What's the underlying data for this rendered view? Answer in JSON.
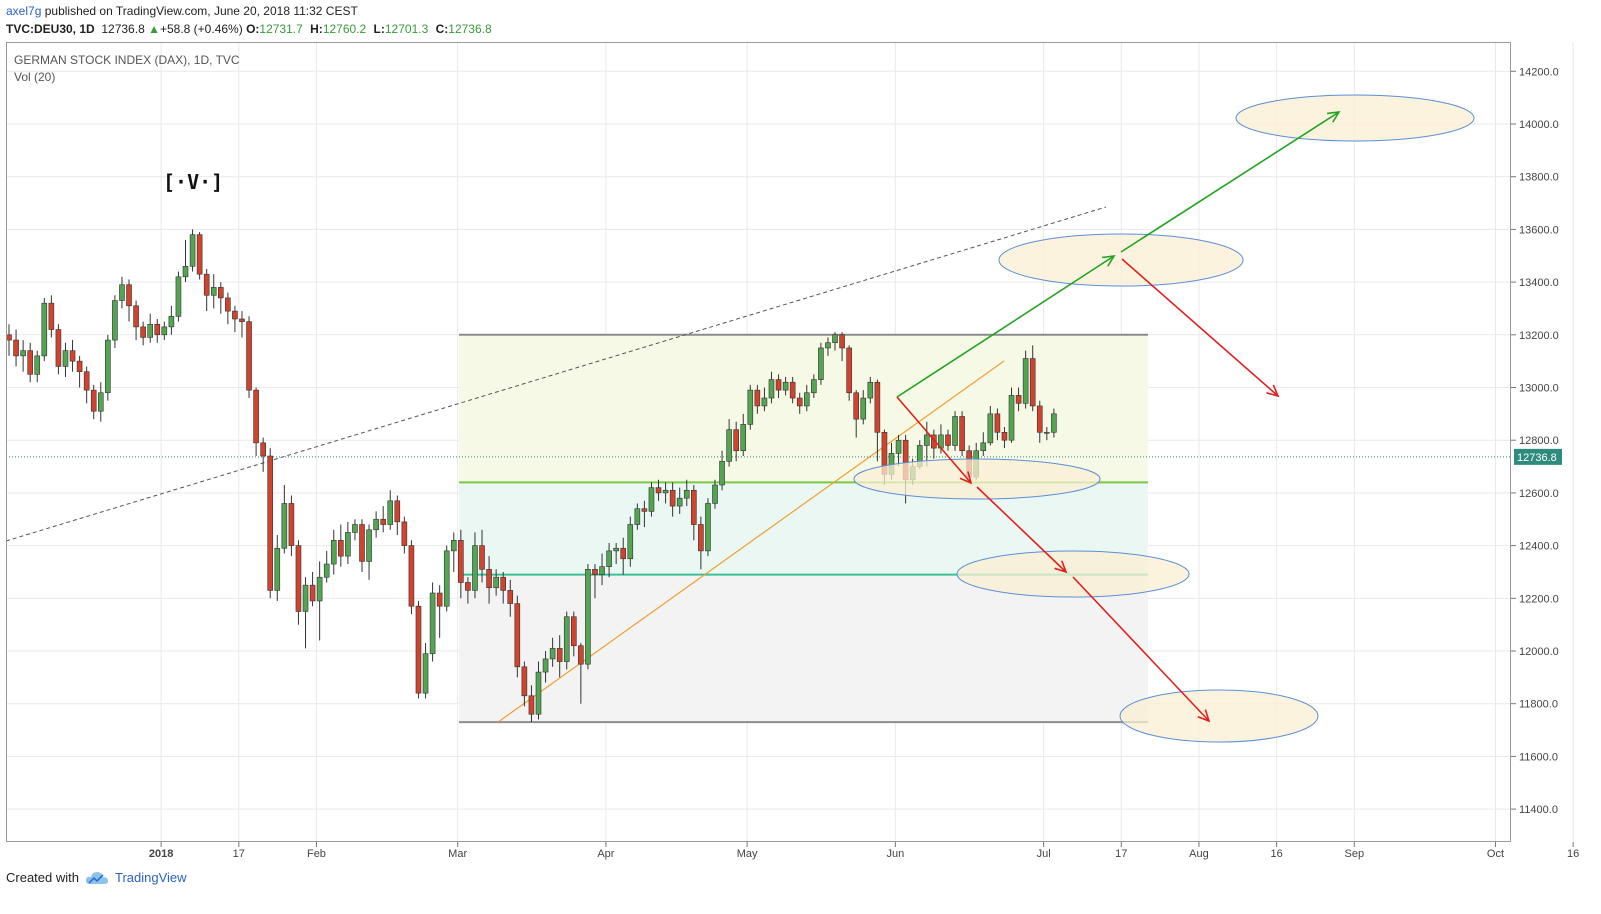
{
  "header": {
    "author": "axel7g",
    "published": "published on TradingView.com, June 20, 2018 11:32 CEST",
    "symbol": "TVC:DEU30, 1D",
    "price": "12736.8",
    "change_arrow": "▲",
    "change": "+58.8 (+0.46%)",
    "o_label": "O:",
    "o_value": "12731.7",
    "h_label": "H:",
    "h_value": "12760.2",
    "l_label": "L:",
    "l_value": "12701.3",
    "c_label": "C:",
    "c_value": "12736.8"
  },
  "legend": {
    "title": "GERMAN STOCK INDEX (DAX), 1D, TVC",
    "volume": "Vol (20)"
  },
  "logo_text": "[·V·]",
  "footer": {
    "created": "Created with",
    "brand": "TradingView",
    "brand_icon": "tradingview-cloud-icon"
  },
  "colors": {
    "up": "#53a553",
    "down": "#d0432f",
    "grid": "#e9e9e9",
    "price_badge": "#2f8b7e",
    "green_arrow": "#21a321",
    "red_arrow": "#e02020",
    "ellipse_fill": "#fbefd3",
    "ellipse_stroke": "#5b8fd6",
    "level_1": "#7ac943",
    "level_2": "#3cc198",
    "trend": "#f0a030"
  },
  "chart_data": {
    "type": "candlestick",
    "y_axis_ticks": [
      "11400.0",
      "11600.0",
      "11800.0",
      "12000.0",
      "12200.0",
      "12400.0",
      "12600.0",
      "12800.0",
      "13000.0",
      "13200.0",
      "13400.0",
      "13600.0",
      "13800.0",
      "14000.0",
      "14200.0"
    ],
    "y_range": [
      11260,
      14300
    ],
    "last_price_label": "12736.8",
    "x_axis_ticks": [
      {
        "label": "2018",
        "bold": true,
        "index": 19
      },
      {
        "label": "17",
        "index": 30
      },
      {
        "label": "Feb",
        "index": 41
      },
      {
        "label": "Mar",
        "index": 61
      },
      {
        "label": "Apr",
        "index": 82
      },
      {
        "label": "May",
        "index": 102
      },
      {
        "label": "Jun",
        "index": 123
      },
      {
        "label": "Jul",
        "index": 144
      },
      {
        "label": "17",
        "index": 155
      },
      {
        "label": "Aug",
        "index": 166
      },
      {
        "label": "16",
        "index": 177
      },
      {
        "label": "Sep",
        "index": 188
      },
      {
        "label": "Oct",
        "index": 208
      },
      {
        "label": "16",
        "index": 219
      }
    ],
    "candles": [
      [
        13200,
        13180,
        13240,
        13120
      ],
      [
        13180,
        13120,
        13220,
        13080
      ],
      [
        13120,
        13140,
        13180,
        13060
      ],
      [
        13140,
        13050,
        13170,
        13020
      ],
      [
        13050,
        13120,
        13140,
        13020
      ],
      [
        13120,
        13320,
        13340,
        13100
      ],
      [
        13320,
        13220,
        13350,
        13190
      ],
      [
        13220,
        13080,
        13240,
        13050
      ],
      [
        13080,
        13140,
        13170,
        13040
      ],
      [
        13140,
        13100,
        13180,
        13060
      ],
      [
        13100,
        13060,
        13120,
        13000
      ],
      [
        13060,
        12990,
        13080,
        12940
      ],
      [
        12990,
        12910,
        13010,
        12880
      ],
      [
        12910,
        12980,
        13020,
        12870
      ],
      [
        12980,
        13180,
        13200,
        12950
      ],
      [
        13180,
        13330,
        13350,
        13150
      ],
      [
        13330,
        13390,
        13420,
        13300
      ],
      [
        13390,
        13310,
        13410,
        13250
      ],
      [
        13310,
        13230,
        13330,
        13180
      ],
      [
        13230,
        13190,
        13250,
        13160
      ],
      [
        13190,
        13240,
        13280,
        13170
      ],
      [
        13240,
        13200,
        13260,
        13170
      ],
      [
        13200,
        13230,
        13250,
        13180
      ],
      [
        13230,
        13270,
        13310,
        13200
      ],
      [
        13270,
        13420,
        13440,
        13250
      ],
      [
        13420,
        13460,
        13560,
        13400
      ],
      [
        13460,
        13580,
        13600,
        13440
      ],
      [
        13580,
        13430,
        13590,
        13410
      ],
      [
        13430,
        13350,
        13450,
        13290
      ],
      [
        13350,
        13380,
        13430,
        13300
      ],
      [
        13380,
        13340,
        13400,
        13280
      ],
      [
        13340,
        13290,
        13360,
        13240
      ],
      [
        13290,
        13260,
        13310,
        13210
      ],
      [
        13260,
        13250,
        13290,
        13190
      ],
      [
        13250,
        12990,
        13270,
        12960
      ],
      [
        12990,
        12790,
        13000,
        12740
      ],
      [
        12790,
        12740,
        12810,
        12680
      ],
      [
        12740,
        12230,
        12770,
        12200
      ],
      [
        12230,
        12390,
        12440,
        12190
      ],
      [
        12390,
        12560,
        12630,
        12370
      ],
      [
        12560,
        12400,
        12590,
        12360
      ],
      [
        12400,
        12150,
        12420,
        12100
      ],
      [
        12150,
        12250,
        12280,
        12010
      ],
      [
        12250,
        12190,
        12300,
        12170
      ],
      [
        12190,
        12280,
        12340,
        12040
      ],
      [
        12280,
        12330,
        12380,
        12260
      ],
      [
        12330,
        12420,
        12460,
        12290
      ],
      [
        12420,
        12360,
        12480,
        12320
      ],
      [
        12360,
        12450,
        12490,
        12330
      ],
      [
        12450,
        12480,
        12500,
        12420
      ],
      [
        12480,
        12340,
        12500,
        12300
      ],
      [
        12340,
        12460,
        12480,
        12270
      ],
      [
        12460,
        12500,
        12530,
        12430
      ],
      [
        12500,
        12480,
        12550,
        12450
      ],
      [
        12480,
        12570,
        12610,
        12460
      ],
      [
        12570,
        12490,
        12590,
        12440
      ],
      [
        12490,
        12400,
        12510,
        12370
      ],
      [
        12400,
        12170,
        12420,
        12140
      ],
      [
        12170,
        11840,
        12190,
        11820
      ],
      [
        11840,
        11990,
        12030,
        11820
      ],
      [
        11990,
        12220,
        12260,
        11960
      ],
      [
        12220,
        12170,
        12250,
        12050
      ],
      [
        12170,
        12380,
        12400,
        12150
      ],
      [
        12380,
        12420,
        12450,
        12300
      ],
      [
        12420,
        12260,
        12460,
        12200
      ],
      [
        12260,
        12230,
        12280,
        12180
      ],
      [
        12230,
        12400,
        12450,
        12200
      ],
      [
        12400,
        12310,
        12460,
        12260
      ],
      [
        12310,
        12240,
        12360,
        12180
      ],
      [
        12240,
        12280,
        12310,
        12210
      ],
      [
        12280,
        12230,
        12300,
        12180
      ],
      [
        12230,
        12180,
        12270,
        12130
      ],
      [
        12180,
        11940,
        12210,
        11900
      ],
      [
        11940,
        11830,
        11960,
        11790
      ],
      [
        11830,
        11760,
        11870,
        11730
      ],
      [
        11760,
        11920,
        11960,
        11740
      ],
      [
        11920,
        11970,
        12000,
        11880
      ],
      [
        11970,
        12010,
        12050,
        11940
      ],
      [
        12010,
        11960,
        12060,
        11900
      ],
      [
        11960,
        12130,
        12150,
        11930
      ],
      [
        12130,
        12020,
        12150,
        11980
      ],
      [
        12020,
        11950,
        12030,
        11800
      ],
      [
        11950,
        12310,
        12330,
        11930
      ],
      [
        12310,
        12290,
        12330,
        12200
      ],
      [
        12290,
        12320,
        12370,
        12250
      ],
      [
        12320,
        12380,
        12410,
        12280
      ],
      [
        12380,
        12390,
        12410,
        12330
      ],
      [
        12390,
        12350,
        12430,
        12290
      ],
      [
        12350,
        12480,
        12510,
        12320
      ],
      [
        12480,
        12540,
        12560,
        12460
      ],
      [
        12540,
        12530,
        12570,
        12470
      ],
      [
        12530,
        12620,
        12640,
        12510
      ],
      [
        12620,
        12600,
        12650,
        12570
      ],
      [
        12600,
        12610,
        12640,
        12560
      ],
      [
        12610,
        12550,
        12640,
        12510
      ],
      [
        12550,
        12580,
        12620,
        12520
      ],
      [
        12580,
        12610,
        12650,
        12550
      ],
      [
        12610,
        12480,
        12630,
        12420
      ],
      [
        12480,
        12380,
        12510,
        12310
      ],
      [
        12380,
        12560,
        12580,
        12360
      ],
      [
        12560,
        12630,
        12650,
        12540
      ],
      [
        12630,
        12720,
        12760,
        12610
      ],
      [
        12720,
        12840,
        12880,
        12700
      ],
      [
        12840,
        12760,
        12870,
        12720
      ],
      [
        12760,
        12860,
        12900,
        12740
      ],
      [
        12860,
        12990,
        13010,
        12840
      ],
      [
        12990,
        12930,
        13010,
        12900
      ],
      [
        12930,
        12960,
        13000,
        12910
      ],
      [
        12960,
        13030,
        13060,
        12940
      ],
      [
        13030,
        12990,
        13050,
        12960
      ],
      [
        12990,
        13020,
        13040,
        12970
      ],
      [
        13020,
        12960,
        13040,
        12940
      ],
      [
        12960,
        12930,
        12980,
        12900
      ],
      [
        12930,
        12980,
        13010,
        12910
      ],
      [
        12980,
        13030,
        13050,
        12960
      ],
      [
        13030,
        13150,
        13170,
        13010
      ],
      [
        13150,
        13170,
        13190,
        13120
      ],
      [
        13170,
        13200,
        13210,
        13140
      ],
      [
        13200,
        13150,
        13210,
        13100
      ],
      [
        13150,
        12980,
        13160,
        12950
      ],
      [
        12980,
        12880,
        12990,
        12810
      ],
      [
        12880,
        12960,
        12990,
        12860
      ],
      [
        12960,
        13020,
        13040,
        12940
      ],
      [
        13020,
        12830,
        13030,
        12720
      ],
      [
        12830,
        12670,
        12840,
        12630
      ],
      [
        12670,
        12750,
        12790,
        12650
      ],
      [
        12750,
        12800,
        12820,
        12700
      ],
      [
        12800,
        12650,
        12820,
        12560
      ],
      [
        12650,
        12700,
        12730,
        12630
      ],
      [
        12700,
        12780,
        12800,
        12690
      ],
      [
        12780,
        12820,
        12870,
        12700
      ],
      [
        12820,
        12770,
        12840,
        12730
      ],
      [
        12770,
        12820,
        12860,
        12750
      ],
      [
        12820,
        12780,
        12840,
        12760
      ],
      [
        12780,
        12890,
        12910,
        12760
      ],
      [
        12890,
        12760,
        12910,
        12740
      ],
      [
        12760,
        12660,
        12780,
        12640
      ],
      [
        12660,
        12760,
        12790,
        12650
      ],
      [
        12760,
        12790,
        12830,
        12740
      ],
      [
        12790,
        12900,
        12930,
        12780
      ],
      [
        12900,
        12830,
        12920,
        12800
      ],
      [
        12830,
        12800,
        12850,
        12770
      ],
      [
        12800,
        12970,
        13000,
        12790
      ],
      [
        12970,
        12940,
        13000,
        12910
      ],
      [
        12940,
        13110,
        13140,
        12920
      ],
      [
        13110,
        12930,
        13160,
        12910
      ],
      [
        12930,
        12830,
        12950,
        12790
      ],
      [
        12830,
        12830,
        12850,
        12800
      ],
      [
        12830,
        12900,
        12920,
        12810
      ]
    ],
    "annotations": [
      "horizontal levels at 13200, 12640, 12290, 11730",
      "targets ellipses near 14050, 13500, 12640, 12290, 11730",
      "green arrows up, red arrows down"
    ]
  }
}
